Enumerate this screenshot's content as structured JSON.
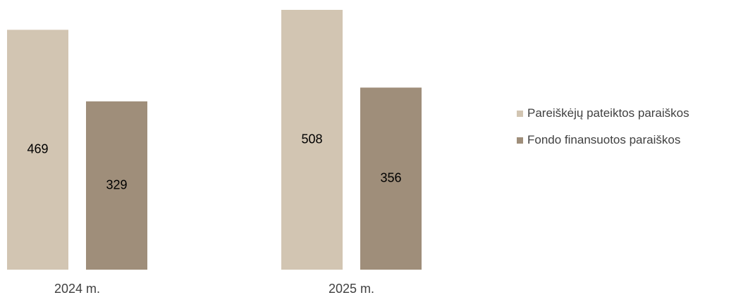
{
  "chart_data": {
    "type": "bar",
    "categories": [
      "2024 m.",
      "2025 m."
    ],
    "series": [
      {
        "name": "Pareiškėjų pateiktos paraiškos",
        "values": [
          469,
          508
        ],
        "color": "#d2c5b2"
      },
      {
        "name": "Fondo finansuotos paraiškos",
        "values": [
          329,
          356
        ],
        "color": "#9f8e7a"
      }
    ],
    "ylim": [
      0,
      508
    ],
    "grid": false,
    "legend_position": "right"
  }
}
